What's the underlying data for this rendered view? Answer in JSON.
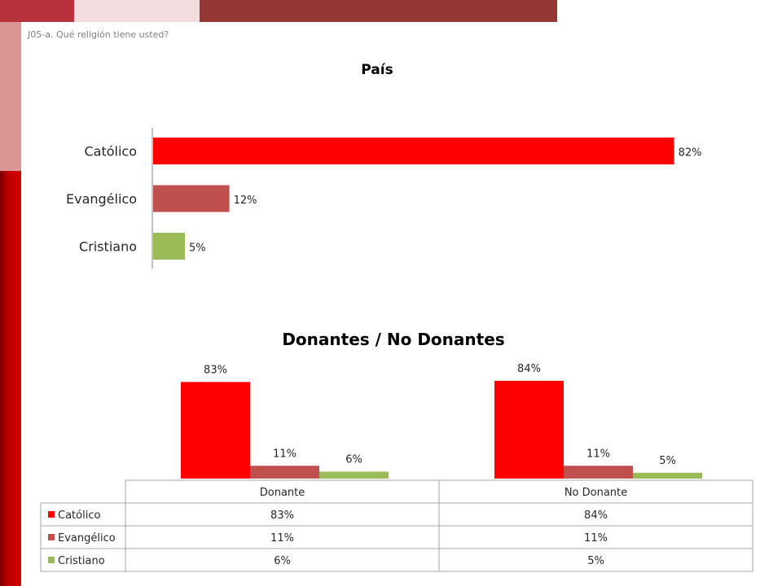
{
  "question": "J05-a. Qué religión tiene usted?",
  "chart_data": [
    {
      "type": "bar",
      "orientation": "horizontal",
      "title": "País",
      "categories": [
        "Católico",
        "Evangélico",
        "Cristiano"
      ],
      "values": [
        82,
        12,
        5
      ],
      "value_labels": [
        "82%",
        "12%",
        "5%"
      ],
      "colors": [
        "#ff0000",
        "#c0504d",
        "#9bbb59"
      ],
      "xlim": [
        0,
        100
      ]
    },
    {
      "type": "bar",
      "title": "Donantes / No Donantes",
      "categories": [
        "Donante",
        "No Donante"
      ],
      "series": [
        {
          "name": "Católico",
          "values": [
            83,
            84
          ],
          "labels": [
            "83%",
            "84%"
          ],
          "color": "#ff0000"
        },
        {
          "name": "Evangélico",
          "values": [
            11,
            11
          ],
          "labels": [
            "11%",
            "11%"
          ],
          "color": "#c0504d"
        },
        {
          "name": "Cristiano",
          "values": [
            6,
            5
          ],
          "labels": [
            "6%",
            "5%"
          ],
          "color": "#9bbb59"
        }
      ],
      "ylim": [
        0,
        100
      ],
      "data_table": true
    }
  ]
}
